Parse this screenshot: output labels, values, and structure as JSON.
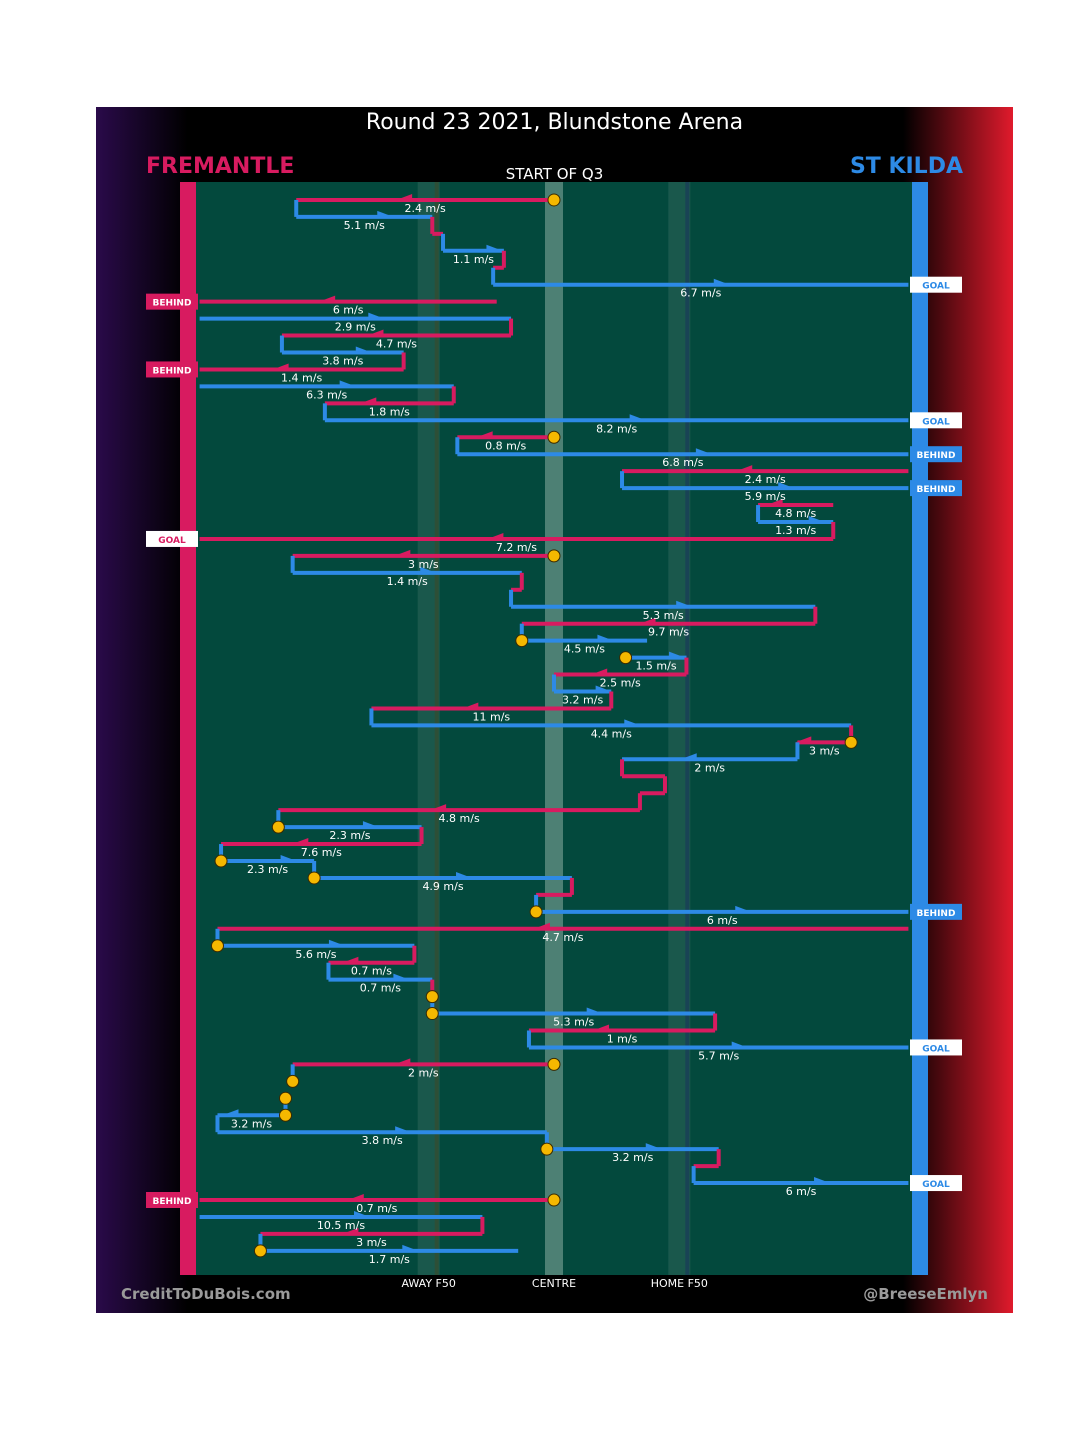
{
  "header": {
    "title": "Round 23 2021, Blundstone Arena",
    "subtitle": "START OF Q3",
    "team_left": "FREMANTLE",
    "team_right": "ST KILDA"
  },
  "footer": {
    "credit_left": "CreditToDuBois.com",
    "credit_right": "@BreeseEmlyn"
  },
  "colors": {
    "fremantle": "#d81b60",
    "stkilda": "#2d8ae6",
    "field": "#03493d",
    "ball": "#f5b800"
  },
  "chart_data": {
    "type": "chain",
    "title": "Round 23 2021, Blundstone Arena",
    "subtitle": "START OF Q3",
    "x_axis": {
      "range": [
        -100,
        100
      ],
      "labels": [
        {
          "label": "AWAY F50",
          "x": -35
        },
        {
          "label": "CENTRE",
          "x": 0
        },
        {
          "label": "HOME F50",
          "x": 35
        }
      ]
    },
    "segments": [
      {
        "team": "FRE",
        "y": 1,
        "x1": 0,
        "x2": -72,
        "speed": "2.4 m/s",
        "start_ball": true
      },
      {
        "team": "STK",
        "y": 2,
        "x1": -72,
        "x2": -34,
        "speed": "5.1 m/s"
      },
      {
        "team": "FRE",
        "y": 3,
        "x1": -34,
        "x2": -31
      },
      {
        "team": "STK",
        "y": 4,
        "x1": -31,
        "x2": -14,
        "speed": "1.1 m/s"
      },
      {
        "team": "FRE",
        "y": 5,
        "x1": -14,
        "x2": -17
      },
      {
        "team": "STK",
        "y": 6,
        "x1": -17,
        "x2": 99,
        "speed": "6.7 m/s",
        "end": "GOAL"
      },
      {
        "team": "FRE",
        "y": 7,
        "x1": -16,
        "x2": -99,
        "speed": "6 m/s",
        "end": "BEHIND"
      },
      {
        "team": "STK",
        "y": 8,
        "x1": -99,
        "x2": -12,
        "speed": "2.9 m/s"
      },
      {
        "team": "FRE",
        "y": 9,
        "x1": -12,
        "x2": -76,
        "speed": "4.7 m/s"
      },
      {
        "team": "STK",
        "y": 10,
        "x1": -76,
        "x2": -42,
        "speed": "3.8 m/s"
      },
      {
        "team": "FRE",
        "y": 11,
        "x1": -42,
        "x2": -99,
        "speed": "1.4 m/s",
        "end": "BEHIND"
      },
      {
        "team": "STK",
        "y": 12,
        "x1": -99,
        "x2": -28,
        "speed": "6.3 m/s"
      },
      {
        "team": "FRE",
        "y": 13,
        "x1": -28,
        "x2": -64,
        "speed": "1.8 m/s"
      },
      {
        "team": "STK",
        "y": 14,
        "x1": -64,
        "x2": 99,
        "speed": "8.2 m/s",
        "end": "GOAL"
      },
      {
        "team": "FRE",
        "y": 15,
        "x1": 0,
        "x2": -27,
        "speed": "0.8 m/s",
        "start_ball": true
      },
      {
        "team": "STK",
        "y": 16,
        "x1": -27,
        "x2": 99,
        "speed": "6.8 m/s",
        "end": "BEHIND"
      },
      {
        "team": "FRE",
        "y": 17,
        "x1": 99,
        "x2": 19,
        "speed": "2.4 m/s"
      },
      {
        "team": "STK",
        "y": 18,
        "x1": 19,
        "x2": 99,
        "speed": "5.9 m/s",
        "end": "BEHIND"
      },
      {
        "team": "FRE",
        "y": 19,
        "x1": 78,
        "x2": 57,
        "speed": "4.8 m/s"
      },
      {
        "team": "STK",
        "y": 20,
        "x1": 57,
        "x2": 78,
        "speed": "1.3 m/s"
      },
      {
        "team": "FRE",
        "y": 21,
        "x1": 78,
        "x2": -99,
        "speed": "7.2 m/s",
        "end": "GOAL"
      },
      {
        "team": "FRE",
        "y": 22,
        "x1": 0,
        "x2": -73,
        "speed": "3 m/s",
        "start_ball": true
      },
      {
        "team": "STK",
        "y": 23,
        "x1": -73,
        "x2": -9,
        "speed": "1.4 m/s"
      },
      {
        "team": "FRE",
        "y": 24,
        "x1": -9,
        "x2": -12
      },
      {
        "team": "STK",
        "y": 25,
        "x1": -12,
        "x2": 73,
        "speed": "5.3 m/s"
      },
      {
        "team": "FRE",
        "y": 26,
        "x1": 73,
        "x2": -9,
        "speed": "9.7 m/s"
      },
      {
        "team": "STK",
        "y": 27,
        "x1": -9,
        "x2": 26,
        "speed": "4.5 m/s",
        "start_ball": true
      },
      {
        "team": "STK",
        "y": 28,
        "x1": 20,
        "x2": 37,
        "speed": "1.5 m/s",
        "start_ball": true
      },
      {
        "team": "FRE",
        "y": 29,
        "x1": 37,
        "x2": 0,
        "speed": "2.5 m/s"
      },
      {
        "team": "STK",
        "y": 30,
        "x1": 0,
        "x2": 16,
        "speed": "3.2 m/s"
      },
      {
        "team": "FRE",
        "y": 31,
        "x1": 16,
        "x2": -51,
        "speed": "11 m/s"
      },
      {
        "team": "STK",
        "y": 32,
        "x1": -51,
        "x2": 83,
        "speed": "4.4 m/s"
      },
      {
        "team": "FRE",
        "y": 33,
        "x1": 83,
        "x2": 68,
        "speed": "3 m/s",
        "start_ball": true
      },
      {
        "team": "STK",
        "y": 34,
        "x1": 68,
        "x2": 19,
        "speed": "2 m/s"
      },
      {
        "team": "FRE",
        "y": 35,
        "x1": 19,
        "x2": 31
      },
      {
        "team": "FRE",
        "y": 36,
        "x1": 31,
        "x2": 24
      },
      {
        "team": "FRE",
        "y": 37,
        "x1": 24,
        "x2": -77,
        "speed": "4.8 m/s"
      },
      {
        "team": "STK",
        "y": 38,
        "x1": -77,
        "x2": -37,
        "speed": "2.3 m/s",
        "start_ball": true
      },
      {
        "team": "FRE",
        "y": 39,
        "x1": -37,
        "x2": -93,
        "speed": "7.6 m/s"
      },
      {
        "team": "STK",
        "y": 40,
        "x1": -93,
        "x2": -67,
        "speed": "2.3 m/s",
        "start_ball": true
      },
      {
        "team": "STK",
        "y": 41,
        "x1": -67,
        "x2": 5,
        "speed": "4.9 m/s",
        "start_ball": true
      },
      {
        "team": "FRE",
        "y": 42,
        "x1": 5,
        "x2": -5
      },
      {
        "team": "STK",
        "y": 43,
        "x1": -5,
        "x2": 99,
        "speed": "6 m/s",
        "start_ball": true,
        "end": "BEHIND"
      },
      {
        "team": "FRE",
        "y": 44,
        "x1": 99,
        "x2": -94,
        "speed": "4.7 m/s"
      },
      {
        "team": "STK",
        "y": 45,
        "x1": -94,
        "x2": -39,
        "speed": "5.6 m/s",
        "start_ball": true
      },
      {
        "team": "FRE",
        "y": 46,
        "x1": -39,
        "x2": -63,
        "speed": "0.7 m/s"
      },
      {
        "team": "STK",
        "y": 47,
        "x1": -63,
        "x2": -34,
        "speed": "0.7 m/s"
      },
      {
        "team": "FRE",
        "y": 48,
        "x1": -34,
        "x2": -34,
        "start_ball": true
      },
      {
        "team": "STK",
        "y": 49,
        "x1": -34,
        "x2": 45,
        "speed": "5.3 m/s",
        "start_ball": true
      },
      {
        "team": "FRE",
        "y": 50,
        "x1": 45,
        "x2": -7,
        "speed": "1 m/s"
      },
      {
        "team": "STK",
        "y": 51,
        "x1": -7,
        "x2": 99,
        "speed": "5.7 m/s",
        "end": "GOAL"
      },
      {
        "team": "FRE",
        "y": 52,
        "x1": 0,
        "x2": -73,
        "speed": "2 m/s",
        "start_ball": true
      },
      {
        "team": "STK",
        "y": 53,
        "x1": -73,
        "x2": -73,
        "start_ball": true
      },
      {
        "team": "FRE",
        "y": 54,
        "x1": -75,
        "x2": -75,
        "start_ball": true
      },
      {
        "team": "STK",
        "y": 55,
        "x1": -75,
        "x2": -94,
        "speed": "3.2 m/s",
        "start_ball": true
      },
      {
        "team": "STK",
        "y": 56,
        "x1": -94,
        "x2": -2,
        "speed": "3.8 m/s"
      },
      {
        "team": "STK",
        "y": 57,
        "x1": -2,
        "x2": 46,
        "speed": "3.2 m/s",
        "start_ball": true
      },
      {
        "team": "FRE",
        "y": 58,
        "x1": 46,
        "x2": 39
      },
      {
        "team": "STK",
        "y": 59,
        "x1": 39,
        "x2": 99,
        "speed": "6 m/s",
        "end": "GOAL"
      },
      {
        "team": "FRE",
        "y": 60,
        "x1": 0,
        "x2": -99,
        "speed": "0.7 m/s",
        "start_ball": true,
        "end": "BEHIND"
      },
      {
        "team": "STK",
        "y": 61,
        "x1": -99,
        "x2": -20,
        "speed": "10.5 m/s"
      },
      {
        "team": "FRE",
        "y": 62,
        "x1": -20,
        "x2": -82,
        "speed": "3 m/s"
      },
      {
        "team": "STK",
        "y": 63,
        "x1": -82,
        "x2": -10,
        "speed": "1.7 m/s",
        "start_ball": true
      }
    ]
  }
}
